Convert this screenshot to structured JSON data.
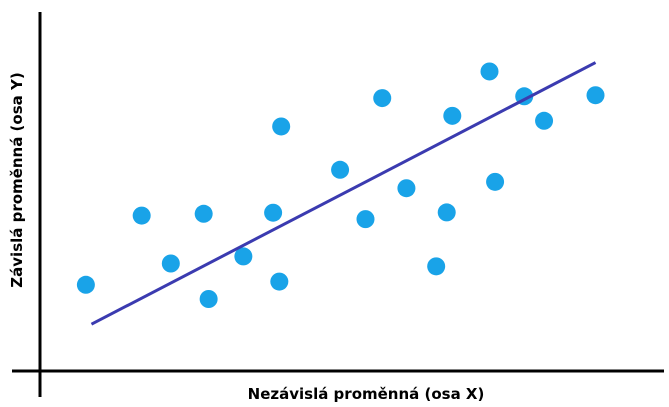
{
  "chart_data": {
    "type": "scatter",
    "title": "",
    "xlabel": "Nezávislá proměnná (osa X)",
    "ylabel": "Závislá proměnná (osa Y)",
    "grid": false,
    "legend": "none",
    "xlim": [
      0,
      100
    ],
    "ylim": [
      0,
      100
    ],
    "points": [
      {
        "x": 7.4,
        "y": 24.0
      },
      {
        "x": 16.4,
        "y": 43.5
      },
      {
        "x": 21.1,
        "y": 30.0
      },
      {
        "x": 26.4,
        "y": 44.0
      },
      {
        "x": 27.2,
        "y": 20.0
      },
      {
        "x": 32.8,
        "y": 32.0
      },
      {
        "x": 37.6,
        "y": 44.3
      },
      {
        "x": 38.6,
        "y": 24.9
      },
      {
        "x": 38.9,
        "y": 68.6
      },
      {
        "x": 48.4,
        "y": 56.4
      },
      {
        "x": 52.5,
        "y": 42.5
      },
      {
        "x": 55.2,
        "y": 76.6
      },
      {
        "x": 59.1,
        "y": 51.2
      },
      {
        "x": 63.9,
        "y": 29.2
      },
      {
        "x": 65.6,
        "y": 44.4
      },
      {
        "x": 66.5,
        "y": 71.6
      },
      {
        "x": 72.5,
        "y": 84.1
      },
      {
        "x": 73.4,
        "y": 53.0
      },
      {
        "x": 78.1,
        "y": 77.1
      },
      {
        "x": 81.3,
        "y": 70.2
      },
      {
        "x": 89.6,
        "y": 77.4
      }
    ],
    "trendline": {
      "x": [
        8.3,
        89.6
      ],
      "y": [
        12.9,
        86.6
      ]
    },
    "colors": {
      "points": "#19a3e8",
      "trendline": "#3b3bb0",
      "axes": "#000000"
    }
  }
}
